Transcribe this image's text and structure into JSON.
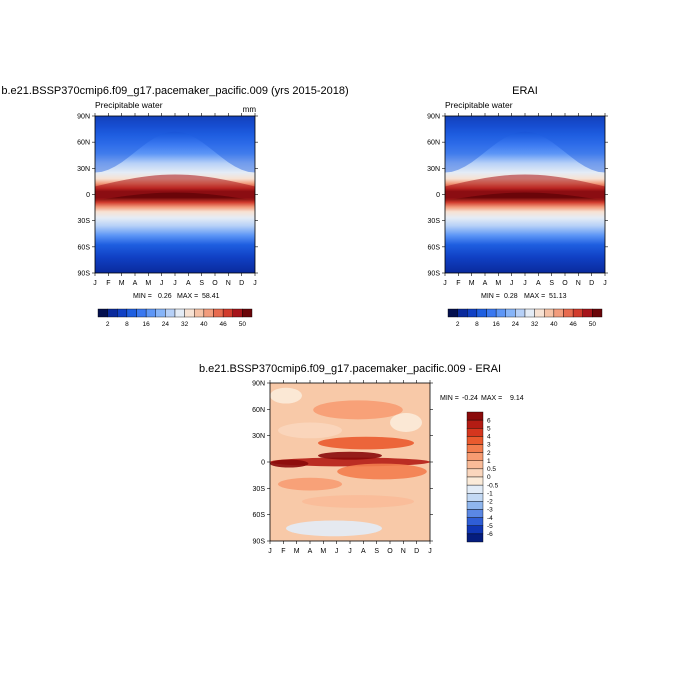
{
  "chart_data": [
    {
      "type": "heatmap",
      "title": "b.e21.BSSP370cmip6.f09_g17.pacemaker_pacific.009 (yrs 2015-2018)",
      "field_label": "Precipitable water",
      "units": "mm",
      "x_ticks": [
        "J",
        "F",
        "M",
        "A",
        "M",
        "J",
        "J",
        "A",
        "S",
        "O",
        "N",
        "D",
        "J"
      ],
      "y_ticks": [
        "90N",
        "60N",
        "30N",
        "0",
        "30S",
        "60S",
        "90S"
      ],
      "min_label": "MIN = ",
      "min_value": "0.26",
      "max_label": "MAX = ",
      "max_value": "58.41",
      "colorbar_labels": [
        "2",
        "8",
        "16",
        "24",
        "32",
        "40",
        "46",
        "50"
      ],
      "colorbar_levels": [
        2,
        4,
        8,
        12,
        16,
        20,
        24,
        28,
        32,
        36,
        40,
        43,
        46,
        48,
        50
      ],
      "colorbar_colors": [
        "#04104e",
        "#0a2a9c",
        "#1040c4",
        "#1e5ee0",
        "#3a78f0",
        "#5d96f6",
        "#86b4f8",
        "#b6d0f7",
        "#e4ecf6",
        "#f7e2d3",
        "#f6c2a6",
        "#f29c7c",
        "#e76a4e",
        "#d13b2c",
        "#a6141a",
        "#6a0509"
      ],
      "ylim": [
        -90,
        90
      ]
    },
    {
      "type": "heatmap",
      "title": "ERAI",
      "field_label": "Precipitable water",
      "x_ticks": [
        "J",
        "F",
        "M",
        "A",
        "M",
        "J",
        "J",
        "A",
        "S",
        "O",
        "N",
        "D",
        "J"
      ],
      "y_ticks": [
        "90N",
        "60N",
        "30N",
        "0",
        "30S",
        "60S",
        "90S"
      ],
      "min_label": "MIN = ",
      "min_value": "0.28",
      "max_label": "MAX = ",
      "max_value": "51.13",
      "colorbar_labels": [
        "2",
        "8",
        "16",
        "24",
        "32",
        "40",
        "46",
        "50"
      ],
      "colorbar_levels": [
        2,
        4,
        8,
        12,
        16,
        20,
        24,
        28,
        32,
        36,
        40,
        43,
        46,
        48,
        50
      ],
      "colorbar_colors": [
        "#04104e",
        "#0a2a9c",
        "#1040c4",
        "#1e5ee0",
        "#3a78f0",
        "#5d96f6",
        "#86b4f8",
        "#b6d0f7",
        "#e4ecf6",
        "#f7e2d3",
        "#f6c2a6",
        "#f29c7c",
        "#e76a4e",
        "#d13b2c",
        "#a6141a",
        "#6a0509"
      ],
      "ylim": [
        -90,
        90
      ]
    },
    {
      "type": "heatmap",
      "title": "b.e21.BSSP370cmip6.f09_g17.pacemaker_pacific.009 - ERAI",
      "x_ticks": [
        "J",
        "F",
        "M",
        "A",
        "M",
        "J",
        "J",
        "A",
        "S",
        "O",
        "N",
        "D",
        "J"
      ],
      "y_ticks": [
        "90N",
        "60N",
        "30N",
        "0",
        "30S",
        "60S",
        "90S"
      ],
      "min_label": "MIN = ",
      "min_value": "-0.24",
      "max_label": "MAX = ",
      "max_value": "9.14",
      "colorbar_labels": [
        "6",
        "5",
        "4",
        "3",
        "2",
        "1",
        "0.5",
        "0",
        "-0.5",
        "-1",
        "-2",
        "-3",
        "-4",
        "-5",
        "-6"
      ],
      "colorbar_colors": [
        "#8a0a0a",
        "#b41c14",
        "#d5361e",
        "#ea5a2e",
        "#f37d4e",
        "#f79c72",
        "#f9bb98",
        "#fad6bd",
        "#fbebd9",
        "#e2ecf7",
        "#c3d9f4",
        "#8fb6ee",
        "#5b88e4",
        "#2f5ed6",
        "#1036b4",
        "#051d7e"
      ],
      "ylim": [
        -90,
        90
      ]
    }
  ]
}
